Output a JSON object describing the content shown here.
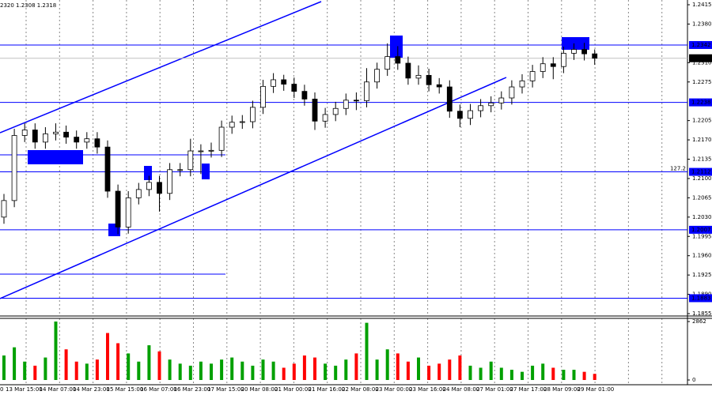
{
  "chart_data": [
    {
      "type": "candlestick",
      "header": "2320 1.2308 1.2318",
      "open": [
        1.203,
        1.206,
        1.2178,
        1.2188,
        1.2166,
        1.2181,
        1.2184,
        1.2175,
        1.2166,
        1.2172,
        1.2157,
        1.2077,
        1.2012,
        1.2065,
        1.208,
        1.2093,
        1.2073,
        1.2116,
        1.2116,
        1.215,
        1.215,
        1.2151,
        1.2193,
        1.2202,
        1.2203,
        1.2229,
        1.2267,
        1.2279,
        1.2271,
        1.2258,
        1.2244,
        1.2204,
        1.2216,
        1.2227,
        1.2242,
        1.2241,
        1.2275,
        1.2298,
        1.2321,
        1.2309,
        1.2282,
        1.2287,
        1.227,
        1.2266,
        1.2222,
        1.2209,
        1.2223,
        1.2232,
        1.2237,
        1.2246,
        1.2266,
        1.2277,
        1.2294,
        1.2308,
        1.2303,
        1.2327,
        1.2334,
        1.2326
      ],
      "high": [
        1.2072,
        1.219,
        1.22,
        1.22,
        1.2193,
        1.22,
        1.2196,
        1.2187,
        1.2184,
        1.2184,
        1.2169,
        1.2089,
        1.2077,
        1.2092,
        1.2105,
        1.2105,
        1.2128,
        1.2128,
        1.2172,
        1.2162,
        1.2165,
        1.2205,
        1.2214,
        1.2215,
        1.2241,
        1.2279,
        1.2291,
        1.2288,
        1.2283,
        1.227,
        1.2256,
        1.2228,
        1.2239,
        1.2254,
        1.2256,
        1.23,
        1.231,
        1.2345,
        1.234,
        1.2321,
        1.2305,
        1.2299,
        1.2282,
        1.2278,
        1.2234,
        1.2235,
        1.2244,
        1.2249,
        1.2258,
        1.2278,
        1.2289,
        1.2306,
        1.232,
        1.232,
        1.2339,
        1.2345,
        1.2346,
        1.2334
      ],
      "low": [
        1.2018,
        1.2048,
        1.2166,
        1.2154,
        1.2154,
        1.2169,
        1.2163,
        1.2154,
        1.2154,
        1.2145,
        1.2065,
        1.1999,
        1.2,
        1.2053,
        1.2068,
        1.204,
        1.2061,
        1.2104,
        1.2104,
        1.2108,
        1.2138,
        1.2139,
        1.2181,
        1.219,
        1.2191,
        1.2217,
        1.2255,
        1.2259,
        1.2246,
        1.2232,
        1.2188,
        1.2192,
        1.2204,
        1.2215,
        1.2224,
        1.2229,
        1.2263,
        1.2286,
        1.2297,
        1.227,
        1.227,
        1.2258,
        1.2254,
        1.221,
        1.2193,
        1.2197,
        1.2211,
        1.222,
        1.2225,
        1.2234,
        1.2254,
        1.2265,
        1.2282,
        1.228,
        1.2291,
        1.2315,
        1.2314,
        1.2306
      ],
      "close": [
        1.206,
        1.2178,
        1.2188,
        1.2166,
        1.2181,
        1.2184,
        1.2175,
        1.2166,
        1.2172,
        1.2157,
        1.2077,
        1.2012,
        1.2065,
        1.208,
        1.2093,
        1.2073,
        1.2116,
        1.2116,
        1.215,
        1.215,
        1.2151,
        1.2193,
        1.2202,
        1.2203,
        1.2229,
        1.2267,
        1.2279,
        1.2271,
        1.2258,
        1.2244,
        1.2204,
        1.2216,
        1.2227,
        1.2242,
        1.2241,
        1.2275,
        1.2298,
        1.2321,
        1.2309,
        1.2282,
        1.2287,
        1.227,
        1.2266,
        1.2222,
        1.2209,
        1.2223,
        1.2232,
        1.2237,
        1.2246,
        1.2266,
        1.2277,
        1.2294,
        1.2308,
        1.2303,
        1.2327,
        1.2334,
        1.2326,
        1.2318
      ],
      "color": "#000000",
      "ylim": [
        1.1855,
        1.2415
      ],
      "yticks": [
        1.2415,
        {
          "value": 1.238,
          "label": "1.2380"
        },
        {
          "value": 1.231,
          "label": "1.2310"
        },
        1.2275,
        1.2205,
        {
          "value": 1.217,
          "label": "1.2170"
        },
        1.2135,
        {
          "value": 1.21,
          "label": "1.2100"
        },
        1.2065,
        {
          "value": 1.203,
          "label": "1.2030"
        },
        1.1995,
        {
          "value": 1.196,
          "label": "1.1960"
        },
        1.1925,
        {
          "value": 1.189,
          "label": "1.1890"
        },
        1.1855
      ],
      "levels": [
        1.2342,
        1.2238,
        1.2112,
        1.2007,
        1.1883
      ],
      "level_color": "#0000ff",
      "last_price": 1.2318,
      "fibo_label": "127.2",
      "grid": true
    },
    {
      "type": "bar",
      "values": [
        1200,
        1600,
        900,
        700,
        1100,
        2862,
        1500,
        900,
        800,
        1000,
        2300,
        1800,
        1300,
        900,
        1700,
        1400,
        1000,
        800,
        700,
        900,
        800,
        1000,
        1100,
        900,
        700,
        1000,
        900,
        600,
        800,
        1200,
        1100,
        800,
        700,
        1000,
        1300,
        2800,
        1000,
        1500,
        1300,
        900,
        1100,
        700,
        800,
        1000,
        1200,
        700,
        600,
        900,
        600,
        500,
        400,
        700,
        800,
        600,
        500,
        500,
        400,
        300
      ],
      "up_color": "#00a000",
      "down_color": "#ff0000",
      "ylim": [
        0,
        2862
      ],
      "yticks": [
        2862,
        0
      ],
      "x_labels": [
        "0",
        "13 Mar 15:00",
        "14 Mar 07:00",
        "14 Mar 23:00",
        "15 Mar 15:00",
        "16 Mar 07:00",
        "16 Mar 23:00",
        "17 Mar 15:00",
        "20 Mar 08:00",
        "21 Mar 00:00",
        "21 Mar 16:00",
        "22 Mar 08:00",
        "23 Mar 00:00",
        "23 Mar 16:00",
        "24 Mar 08:00",
        "27 Mar 01:00",
        "27 Mar 17:00",
        "28 Mar 09:00",
        "29 Mar 01:00"
      ]
    }
  ]
}
